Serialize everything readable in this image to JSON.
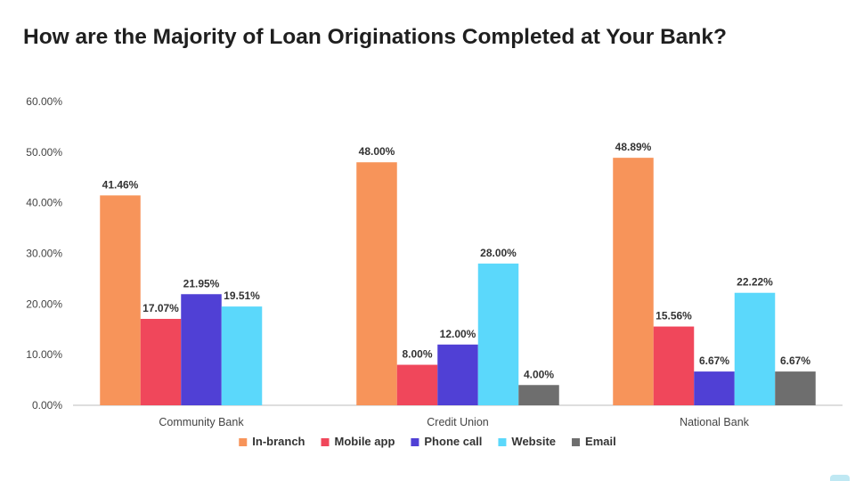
{
  "chart_data": {
    "type": "bar",
    "title": "How are the Majority of Loan Originations Completed at Your Bank?",
    "categories": [
      "Community Bank",
      "Credit Union",
      "National Bank"
    ],
    "series": [
      {
        "name": "In-branch",
        "color": "#f7945a",
        "values": [
          41.46,
          48.0,
          48.89
        ],
        "labels": [
          "41.46%",
          "48.00%",
          "48.89%"
        ]
      },
      {
        "name": "Mobile app",
        "color": "#f0475b",
        "values": [
          17.07,
          8.0,
          15.56
        ],
        "labels": [
          "17.07%",
          "8.00%",
          "15.56%"
        ]
      },
      {
        "name": "Phone call",
        "color": "#5040d5",
        "values": [
          21.95,
          12.0,
          6.67
        ],
        "labels": [
          "21.95%",
          "12.00%",
          "6.67%"
        ]
      },
      {
        "name": "Website",
        "color": "#5bd8fb",
        "values": [
          19.51,
          28.0,
          22.22
        ],
        "labels": [
          "19.51%",
          "28.00%",
          "22.22%"
        ]
      },
      {
        "name": "Email",
        "color": "#6e6e6e",
        "values": [
          null,
          4.0,
          6.67
        ],
        "labels": [
          null,
          "4.00%",
          "6.67%"
        ]
      }
    ],
    "y_ticks": [
      "0.00%",
      "10.00%",
      "20.00%",
      "30.00%",
      "40.00%",
      "50.00%",
      "60.00%"
    ],
    "ylim": [
      0,
      60
    ],
    "grid": false,
    "legend_position": "bottom"
  }
}
